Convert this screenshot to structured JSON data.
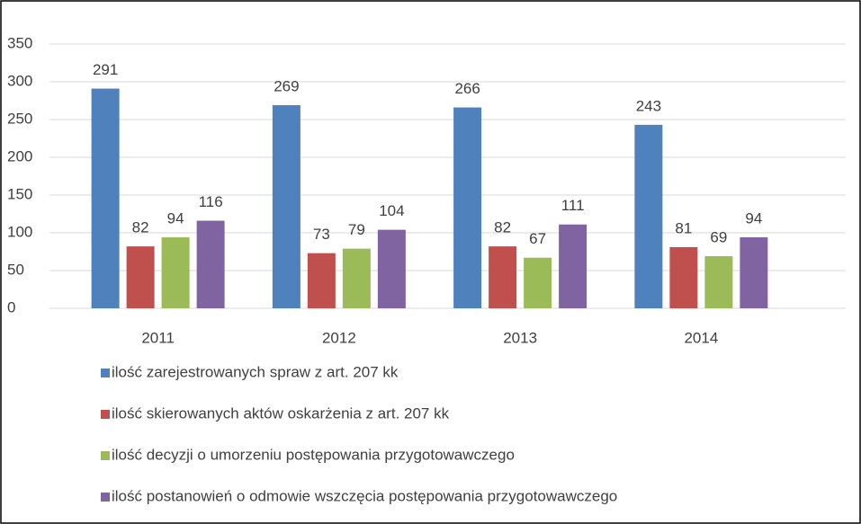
{
  "chart_data": {
    "type": "bar",
    "categories": [
      "2011",
      "2012",
      "2013",
      "2014"
    ],
    "series": [
      {
        "name": "ilość zarejestrowanych spraw z art. 207 kk",
        "color": "#4f81bd",
        "values": [
          291,
          269,
          266,
          243
        ]
      },
      {
        "name": "ilość skierowanych aktów oskarżenia z art. 207 kk",
        "color": "#c0504d",
        "values": [
          82,
          73,
          82,
          81
        ]
      },
      {
        "name": "ilość decyzji o umorzeniu postępowania przygotowawczego",
        "color": "#9bbb59",
        "values": [
          94,
          79,
          67,
          69
        ]
      },
      {
        "name": "ilość postanowień o odmowie wszczęcia postępowania przygotowawczego",
        "color": "#8064a2",
        "values": [
          116,
          104,
          111,
          94
        ]
      }
    ],
    "ylim": [
      0,
      350
    ],
    "yticks": [
      0,
      50,
      100,
      150,
      200,
      250,
      300,
      350
    ],
    "grid": true,
    "legend": "bottom"
  }
}
